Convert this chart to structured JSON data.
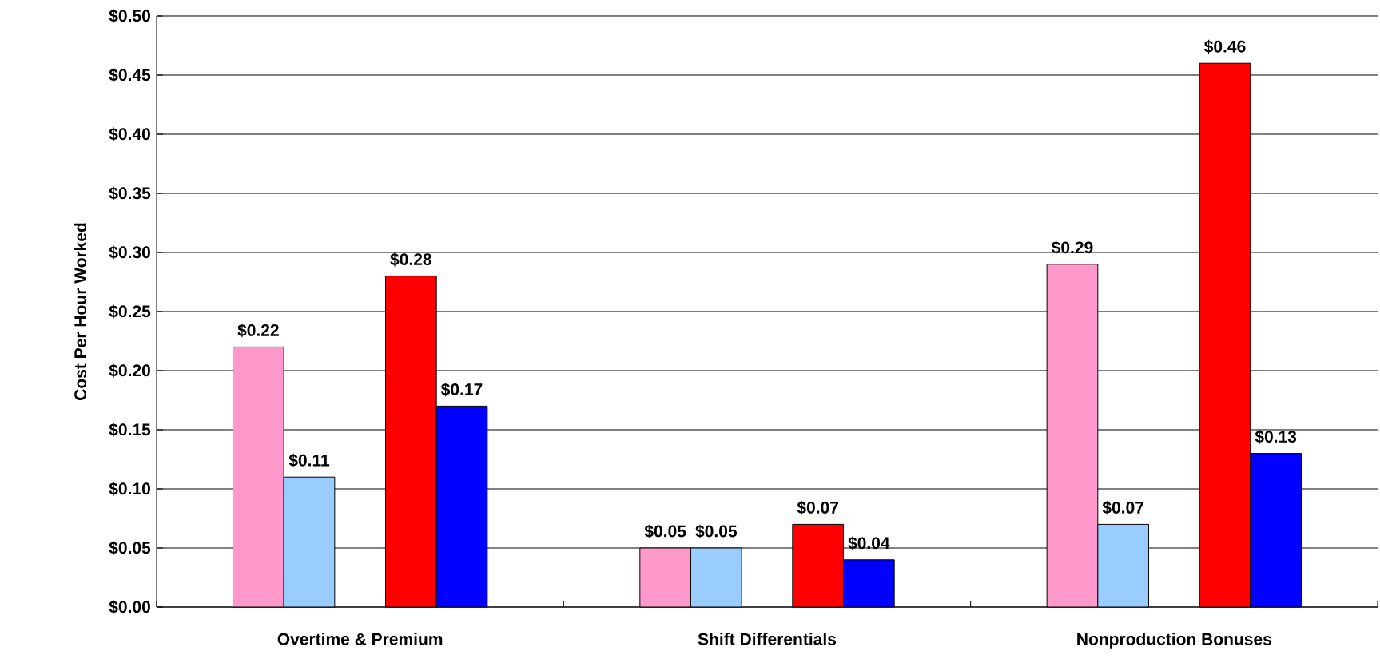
{
  "chart_data": {
    "type": "bar",
    "ylabel": "Cost Per Hour Worked",
    "categories": [
      "Overtime & Premium",
      "Shift Differentials",
      "Nonproduction Bonuses"
    ],
    "series": [
      {
        "color": "#ff99cc",
        "values": [
          0.22,
          0.05,
          0.29
        ],
        "value_labels": [
          "$0.22",
          "$0.05",
          "$0.29"
        ]
      },
      {
        "color": "#99ccff",
        "values": [
          0.11,
          0.05,
          0.07
        ],
        "value_labels": [
          "$0.11",
          "$0.05",
          "$0.07"
        ]
      },
      {
        "color": "#ff0000",
        "values": [
          0.28,
          0.07,
          0.46
        ],
        "value_labels": [
          "$0.28",
          "$0.07",
          "$0.46"
        ]
      },
      {
        "color": "#0000ff",
        "values": [
          0.17,
          0.04,
          0.13
        ],
        "value_labels": [
          "$0.17",
          "$0.04",
          "$0.13"
        ]
      }
    ],
    "ylim": [
      0,
      0.5
    ],
    "yticks": [
      {
        "value": 0,
        "label": "$0.00"
      },
      {
        "value": 0.05,
        "label": "$0.05"
      },
      {
        "value": 0.1,
        "label": "$0.10"
      },
      {
        "value": 0.15,
        "label": "$0.15"
      },
      {
        "value": 0.2,
        "label": "$0.20"
      },
      {
        "value": 0.25,
        "label": "$0.25"
      },
      {
        "value": 0.3,
        "label": "$0.30"
      },
      {
        "value": 0.35,
        "label": "$0.35"
      },
      {
        "value": 0.4,
        "label": "$0.40"
      },
      {
        "value": 0.45,
        "label": "$0.45"
      },
      {
        "value": 0.5,
        "label": "$0.50"
      }
    ],
    "grid": "y"
  }
}
